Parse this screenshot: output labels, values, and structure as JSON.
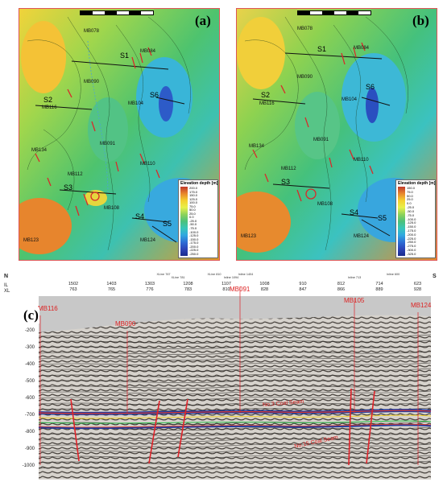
{
  "panels": {
    "a": {
      "letter": "(a)",
      "sections": [
        "S1",
        "S2",
        "S3",
        "S4",
        "S5",
        "S6"
      ],
      "wells": [
        "MB078",
        "MB084",
        "MB090",
        "MB104",
        "MB116",
        "MB091",
        "MB112",
        "MB134",
        "MB110",
        "MB108",
        "MB124",
        "MB123"
      ],
      "legend_title": "Elevation depth [m]",
      "legend_ticks": [
        "200.0",
        "175.0",
        "150.0",
        "125.0",
        "100.0",
        "75.0",
        "50.0",
        "25.0",
        "0.0",
        "-25.0",
        "-50.0",
        "-75.0",
        "-100.0",
        "-125.0",
        "-150.0",
        "-175.0",
        "-200.0",
        "-225.0",
        "-250.0"
      ],
      "scale_ticks": [
        "0",
        "500",
        "1000",
        "1500",
        "2000",
        "2500m"
      ]
    },
    "b": {
      "letter": "(b)",
      "sections": [
        "S1",
        "S2",
        "S3",
        "S4",
        "S5",
        "S6"
      ],
      "wells": [
        "MB078",
        "MB084",
        "MB090",
        "MB104",
        "MB116",
        "MB091",
        "MB112",
        "MB134",
        "MB110",
        "MB108",
        "MB124",
        "MB123"
      ],
      "legend_title": "Elevation depth [m]",
      "legend_ticks": [
        "150.0",
        "75.0",
        "50.0",
        "25.0",
        "0.0",
        "-25.0",
        "-50.0",
        "-75.0",
        "-100.0",
        "-125.0",
        "-150.0",
        "-175.0",
        "-200.0",
        "-225.0",
        "-250.0",
        "-275.0",
        "-300.0",
        "-325.0"
      ],
      "scale_ticks": [
        "0",
        "500",
        "1000",
        "1500",
        "2000",
        "2500m"
      ]
    }
  },
  "section": {
    "letter": "(c)",
    "left_end": "N",
    "right_end": "S",
    "il_label": "IL",
    "xl_label": "XL",
    "inline_il": [
      "1502",
      "1403",
      "1303",
      "1208",
      "1107",
      "1008",
      "910",
      "812",
      "714",
      "623"
    ],
    "inline_xl": [
      "763",
      "765",
      "776",
      "783",
      "810",
      "828",
      "847",
      "866",
      "889",
      "928"
    ],
    "markers": [
      "XLine 767",
      "XLine 781",
      "XLine 810",
      "Inline 1094",
      "Inline 1404",
      "Inline 713",
      "Inline 600"
    ],
    "depth_ticks": [
      "-100",
      "-200",
      "-300",
      "-400",
      "-500",
      "-600",
      "-700",
      "-800",
      "-900",
      "-1000"
    ],
    "wells": [
      "MB116",
      "MB090",
      "MB091",
      "MB105",
      "MB124"
    ],
    "seams": [
      "No.3 Coal Seam",
      "No.15 Coal Seam"
    ]
  }
}
